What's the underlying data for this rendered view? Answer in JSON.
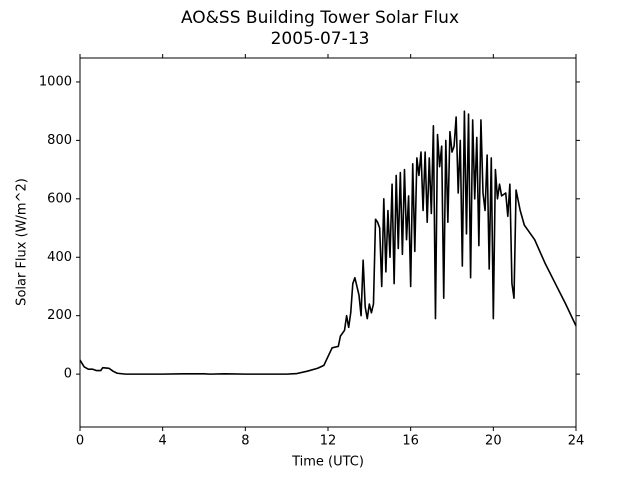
{
  "chart_data": {
    "type": "line",
    "title": "AO&SS Building Tower Solar Flux",
    "subtitle": "2005-07-13",
    "x_label": "Time (UTC)",
    "y_label": "Solar Flux (W/m^2)",
    "xlim": [
      0,
      24
    ],
    "xticks": [
      0,
      4,
      8,
      12,
      16,
      20,
      24
    ],
    "ylim": [
      -181,
      1082
    ],
    "yticks": [
      0,
      200,
      400,
      600,
      800,
      1000
    ],
    "grid": false,
    "series": [
      {
        "name": "Solar Flux",
        "color": "#000000",
        "x": [
          0,
          0.2,
          0.4,
          0.6,
          0.8,
          1.0,
          1.1,
          1.4,
          1.6,
          1.8,
          2.2,
          4,
          5,
          6,
          6.3,
          7,
          8,
          10,
          10.5,
          11,
          11.5,
          11.8,
          12,
          12.2,
          12.5,
          12.6,
          12.8,
          12.9,
          13.0,
          13.1,
          13.2,
          13.3,
          13.4,
          13.5,
          13.6,
          13.7,
          13.8,
          13.9,
          14.0,
          14.1,
          14.2,
          14.3,
          14.4,
          14.5,
          14.6,
          14.7,
          14.8,
          14.9,
          15.0,
          15.1,
          15.2,
          15.3,
          15.4,
          15.5,
          15.6,
          15.7,
          15.8,
          15.9,
          16.0,
          16.1,
          16.2,
          16.3,
          16.4,
          16.5,
          16.6,
          16.7,
          16.8,
          16.9,
          17.0,
          17.1,
          17.2,
          17.3,
          17.4,
          17.5,
          17.6,
          17.7,
          17.8,
          17.9,
          18.0,
          18.1,
          18.2,
          18.3,
          18.4,
          18.5,
          18.6,
          18.7,
          18.8,
          18.9,
          19.0,
          19.1,
          19.2,
          19.3,
          19.4,
          19.5,
          19.6,
          19.7,
          19.8,
          19.9,
          20.0,
          20.1,
          20.2,
          20.3,
          20.4,
          20.6,
          20.7,
          20.8,
          20.9,
          21.0,
          21.1,
          21.3,
          21.5,
          21.7,
          22,
          22.5,
          23,
          23.5,
          24
        ],
        "values": [
          48,
          25,
          17,
          17,
          12,
          12,
          22,
          20,
          10,
          3,
          0,
          0,
          1,
          1,
          0,
          1,
          0,
          0,
          2,
          10,
          20,
          30,
          60,
          90,
          95,
          130,
          150,
          200,
          160,
          210,
          310,
          330,
          300,
          270,
          200,
          390,
          230,
          190,
          240,
          210,
          240,
          530,
          520,
          500,
          300,
          600,
          350,
          560,
          400,
          650,
          310,
          680,
          430,
          690,
          410,
          700,
          460,
          610,
          300,
          720,
          420,
          740,
          680,
          760,
          560,
          760,
          520,
          740,
          550,
          850,
          190,
          820,
          710,
          780,
          260,
          800,
          520,
          830,
          760,
          780,
          880,
          620,
          800,
          370,
          900,
          480,
          890,
          330,
          870,
          600,
          810,
          440,
          870,
          620,
          560,
          750,
          360,
          740,
          190,
          700,
          600,
          650,
          610,
          620,
          540,
          650,
          310,
          260,
          630,
          560,
          510,
          490,
          460,
          380,
          310,
          240,
          165
        ]
      }
    ]
  }
}
